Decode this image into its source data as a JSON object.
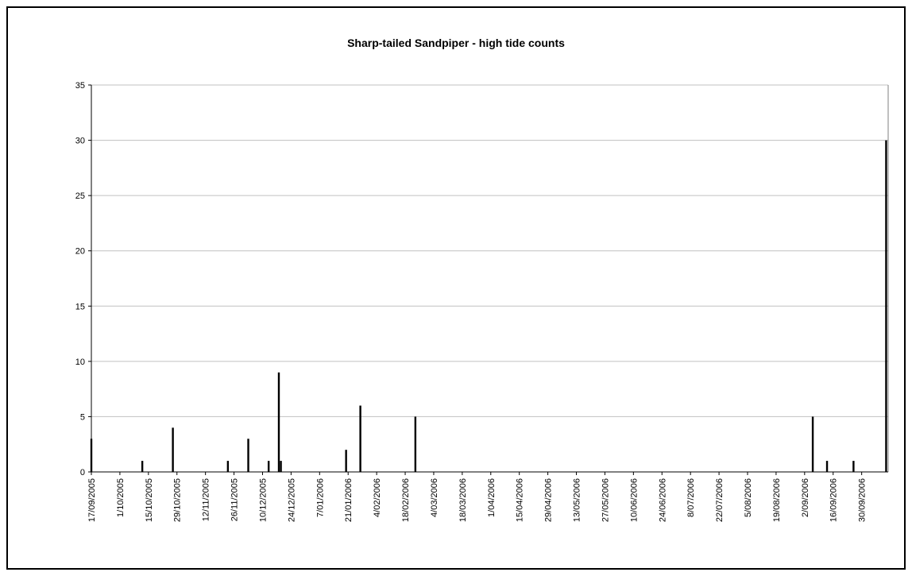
{
  "chart_data": {
    "type": "bar",
    "title": "Sharp-tailed Sandpiper - high tide counts",
    "xlabel": "",
    "ylabel": "",
    "ylim": [
      0,
      35
    ],
    "xlim": [
      "2005-09-17",
      "2006-10-13"
    ],
    "yticks": [
      0,
      5,
      10,
      15,
      20,
      25,
      30,
      35
    ],
    "xtick_labels": [
      "17/09/2005",
      "1/10/2005",
      "15/10/2005",
      "29/10/2005",
      "12/11/2005",
      "26/11/2005",
      "10/12/2005",
      "24/12/2005",
      "7/01/2006",
      "21/01/2006",
      "4/02/2006",
      "18/02/2006",
      "4/03/2006",
      "18/03/2006",
      "1/04/2006",
      "15/04/2006",
      "29/04/2006",
      "13/05/2006",
      "27/05/2006",
      "10/06/2006",
      "24/06/2006",
      "8/07/2006",
      "22/07/2006",
      "5/08/2006",
      "19/08/2006",
      "2/09/2006",
      "16/09/2006",
      "30/09/2006"
    ],
    "grid": true,
    "legend": "none",
    "bar_color": "#000000",
    "gridline_color": "#c0c0c0",
    "points": [
      {
        "date": "2005-09-17",
        "value": 3
      },
      {
        "date": "2005-10-12",
        "value": 1
      },
      {
        "date": "2005-10-27",
        "value": 4
      },
      {
        "date": "2005-11-23",
        "value": 1
      },
      {
        "date": "2005-12-03",
        "value": 3
      },
      {
        "date": "2005-12-13",
        "value": 1
      },
      {
        "date": "2005-12-18",
        "value": 9
      },
      {
        "date": "2005-12-19",
        "value": 1
      },
      {
        "date": "2006-01-20",
        "value": 2
      },
      {
        "date": "2006-01-27",
        "value": 6
      },
      {
        "date": "2006-02-23",
        "value": 5
      },
      {
        "date": "2006-09-06",
        "value": 5
      },
      {
        "date": "2006-09-13",
        "value": 1
      },
      {
        "date": "2006-09-26",
        "value": 1
      },
      {
        "date": "2006-10-12",
        "value": 30
      }
    ]
  }
}
